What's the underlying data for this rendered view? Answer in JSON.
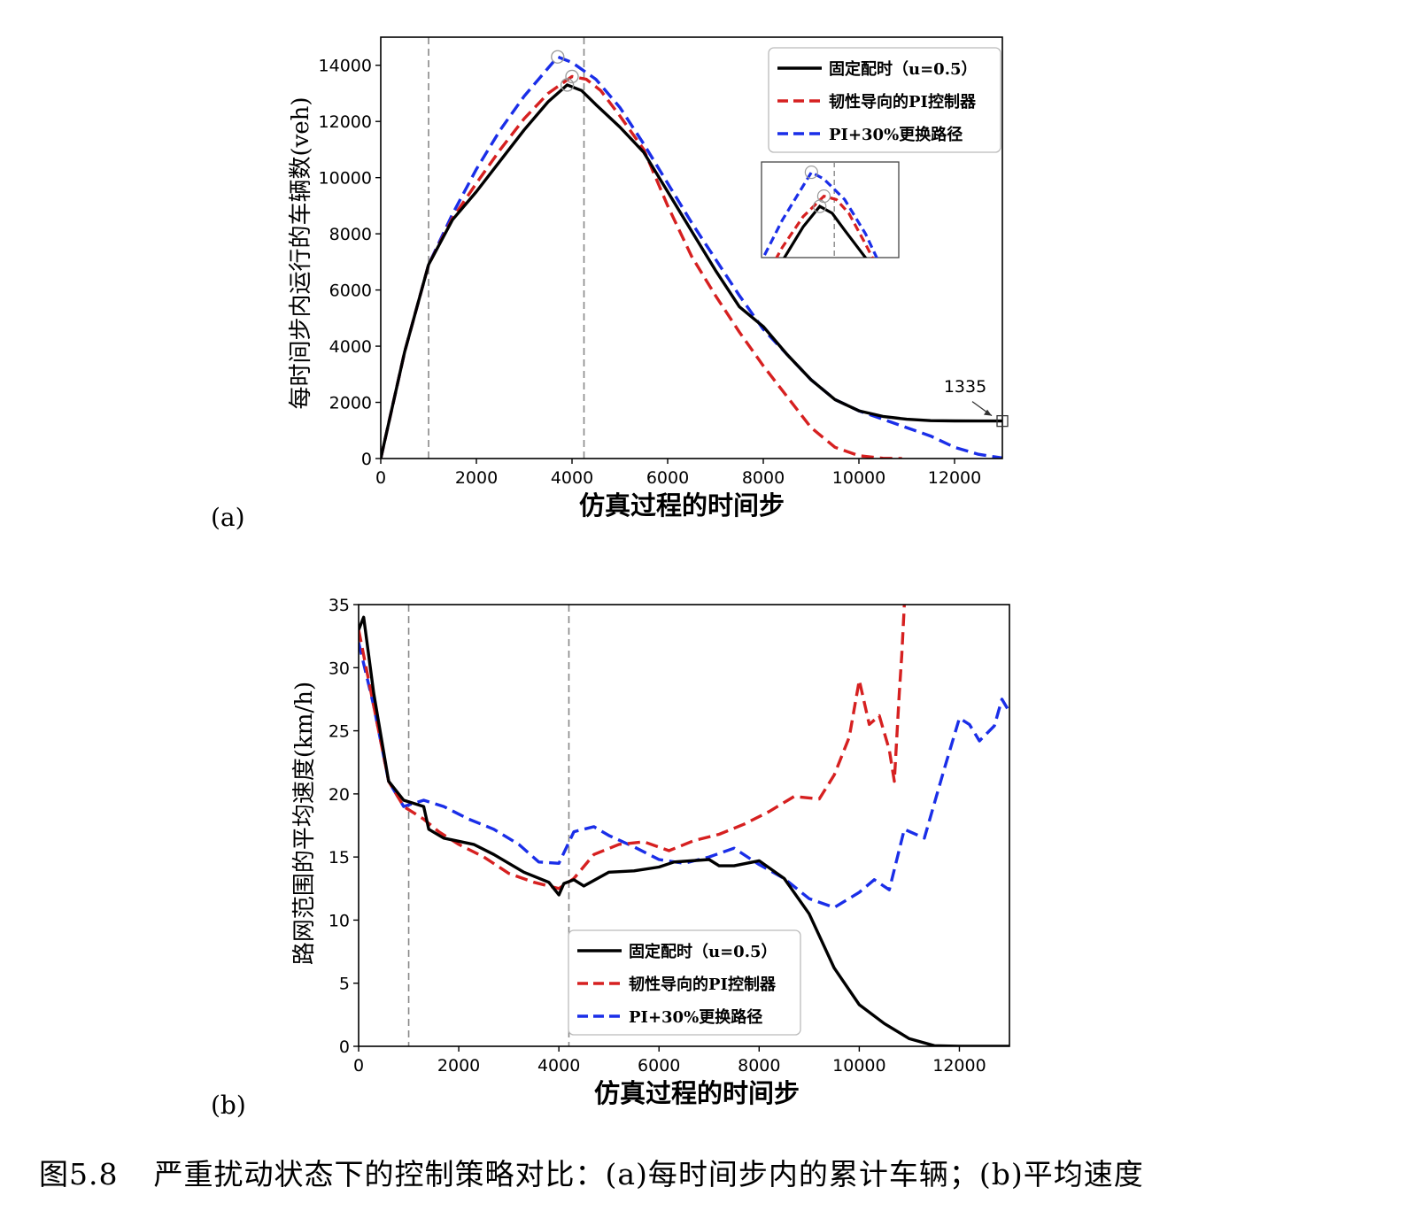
{
  "caption": {
    "label": "图5.8",
    "text": "严重扰动状态下的控制策略对比：(a)每时间步内的累计车辆；(b)平均速度"
  },
  "legend": {
    "fixed": "固定配时（u=0.5）",
    "pi": "韧性导向的PI控制器",
    "reroute": "PI+30%更换路径"
  },
  "colors": {
    "fixed": "#000000",
    "pi": "#d62020",
    "reroute": "#1a2ee8"
  },
  "chart_data": [
    {
      "panel_label": "(a)",
      "type": "line",
      "xlabel": "仿真过程的时间步",
      "ylabel": "每时间步内运行的车辆数(veh)",
      "xlim": [
        0,
        13000
      ],
      "ylim": [
        0,
        15000
      ],
      "xticks": [
        0,
        2000,
        4000,
        6000,
        8000,
        10000,
        12000
      ],
      "yticks": [
        0,
        2000,
        4000,
        6000,
        8000,
        10000,
        12000,
        14000
      ],
      "vlines": [
        1000,
        4250
      ],
      "annotation": {
        "text": "1335",
        "x": 13000,
        "y": 1335
      },
      "inset": true,
      "series": [
        {
          "key": "fixed",
          "style": "solid",
          "x": [
            0,
            500,
            1000,
            1500,
            2000,
            2500,
            3000,
            3500,
            3900,
            4200,
            4500,
            5000,
            5500,
            6000,
            6500,
            7000,
            7500,
            8000,
            8500,
            9000,
            9500,
            10000,
            10500,
            11000,
            11500,
            12000,
            12500,
            13000
          ],
          "y": [
            0,
            3800,
            6900,
            8500,
            9500,
            10600,
            11700,
            12700,
            13300,
            13100,
            12600,
            11800,
            10900,
            9500,
            8100,
            6700,
            5400,
            4700,
            3700,
            2800,
            2100,
            1700,
            1500,
            1400,
            1350,
            1340,
            1335,
            1335
          ]
        },
        {
          "key": "pi",
          "style": "dashed",
          "x": [
            0,
            500,
            1000,
            1500,
            2000,
            2500,
            3000,
            3500,
            4000,
            4300,
            4600,
            5000,
            5500,
            6000,
            6500,
            7000,
            7500,
            8000,
            8500,
            9000,
            9500,
            10000,
            10500,
            10900
          ],
          "y": [
            0,
            3800,
            6900,
            8550,
            9800,
            11000,
            12100,
            13000,
            13600,
            13500,
            13100,
            12200,
            11000,
            9000,
            7200,
            5800,
            4500,
            3300,
            2200,
            1100,
            400,
            100,
            10,
            0
          ]
        },
        {
          "key": "reroute",
          "style": "dashed",
          "x": [
            0,
            500,
            1000,
            1500,
            2000,
            2500,
            3000,
            3500,
            3700,
            4000,
            4500,
            5000,
            5500,
            6000,
            6500,
            7000,
            7500,
            8000,
            8500,
            9000,
            9500,
            10000,
            10500,
            11000,
            11500,
            12000,
            12500,
            13000
          ],
          "y": [
            0,
            3800,
            6900,
            8700,
            10300,
            11700,
            12900,
            13900,
            14300,
            14100,
            13500,
            12500,
            11200,
            9800,
            8400,
            7100,
            5800,
            4600,
            3700,
            2800,
            2100,
            1700,
            1400,
            1100,
            800,
            400,
            150,
            20
          ]
        }
      ]
    },
    {
      "panel_label": "(b)",
      "type": "line",
      "xlabel": "仿真过程的时间步",
      "ylabel": "路网范围的平均速度(km/h)",
      "xlim": [
        0,
        13000
      ],
      "ylim": [
        0,
        35
      ],
      "xticks": [
        0,
        2000,
        4000,
        6000,
        8000,
        10000,
        12000
      ],
      "yticks": [
        0,
        5,
        10,
        15,
        20,
        25,
        30,
        35
      ],
      "vlines": [
        1000,
        4200
      ],
      "series": [
        {
          "key": "fixed",
          "style": "solid",
          "x": [
            0,
            100,
            300,
            600,
            900,
            1300,
            1400,
            1700,
            2300,
            2700,
            3300,
            3800,
            4000,
            4100,
            4300,
            4500,
            5000,
            5500,
            6000,
            6300,
            7000,
            7200,
            7500,
            8000,
            8500,
            9000,
            9500,
            10000,
            10500,
            11000,
            11500,
            12000,
            13000
          ],
          "y": [
            33,
            34,
            28,
            21,
            19.5,
            19,
            17.2,
            16.5,
            16,
            15.2,
            13.8,
            13,
            12,
            12.9,
            13.2,
            12.7,
            13.8,
            13.9,
            14.2,
            14.6,
            14.8,
            14.3,
            14.3,
            14.7,
            13.3,
            10.5,
            6.2,
            3.3,
            1.8,
            0.6,
            0.05,
            0,
            0
          ]
        },
        {
          "key": "pi",
          "style": "dashed",
          "x": [
            0,
            300,
            600,
            900,
            1300,
            1600,
            2000,
            2500,
            3000,
            3500,
            4000,
            4300,
            4700,
            5200,
            5700,
            6200,
            6700,
            7200,
            7700,
            8200,
            8700,
            9200,
            9500,
            9800,
            10000,
            10200,
            10400,
            10600,
            10700,
            10800,
            10850,
            10900
          ],
          "y": [
            33,
            27,
            21,
            19,
            18,
            17,
            16,
            15,
            13.7,
            13,
            12.5,
            13.3,
            15.2,
            16,
            16.2,
            15.5,
            16.3,
            16.8,
            17.6,
            18.6,
            19.8,
            19.6,
            21.5,
            24.5,
            29,
            25.5,
            26.2,
            23.5,
            21,
            28,
            31,
            35
          ]
        },
        {
          "key": "reroute",
          "style": "dashed",
          "x": [
            0,
            300,
            600,
            900,
            1300,
            1700,
            2200,
            2700,
            3200,
            3600,
            4000,
            4300,
            4700,
            5000,
            5500,
            6000,
            6500,
            7000,
            7500,
            8000,
            8500,
            9000,
            9500,
            10000,
            10300,
            10600,
            10900,
            11300,
            11700,
            12000,
            12200,
            12400,
            12700,
            12850,
            13000
          ],
          "y": [
            32,
            27,
            21,
            19,
            19.5,
            19,
            18,
            17.2,
            16,
            14.6,
            14.5,
            17,
            17.4,
            16.7,
            15.8,
            14.8,
            14.5,
            15,
            15.7,
            14.4,
            13.3,
            11.7,
            11,
            12.2,
            13.2,
            12.4,
            17.2,
            16.5,
            22,
            26,
            25.5,
            24.2,
            25.4,
            27.5,
            26.5
          ]
        }
      ]
    }
  ]
}
